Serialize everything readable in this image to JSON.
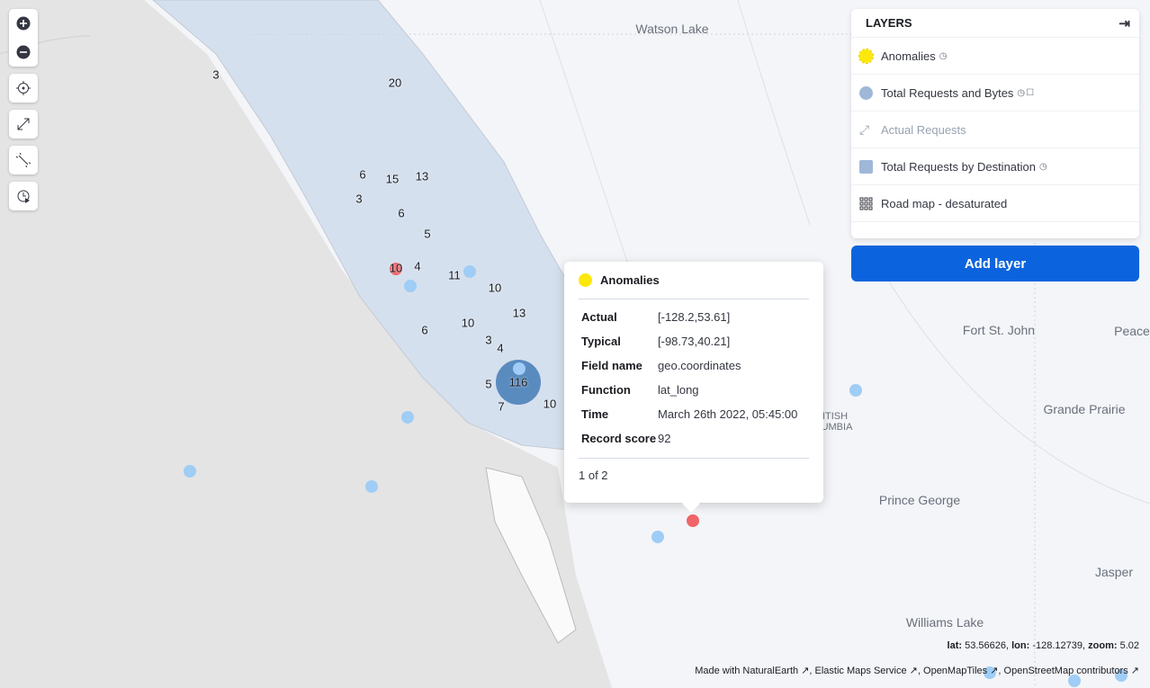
{
  "toolbar": {
    "buttons": [
      "zoom-in",
      "zoom-out",
      "set-view",
      "fit-to-data",
      "draw-tool",
      "timeslider"
    ]
  },
  "layers": {
    "title": "LAYERS",
    "items": [
      {
        "label": "Anomalies",
        "swatch": "#fce80c",
        "shape": "circle",
        "time_aware": true
      },
      {
        "label": "Total Requests and Bytes",
        "swatch": "#9fb8d8",
        "shape": "circle",
        "time_aware": true,
        "filtered": true
      },
      {
        "label": "Actual Requests",
        "swatch": "#98a2b3",
        "shape": "line",
        "disabled": true
      },
      {
        "label": "Total Requests by Destination",
        "swatch": "#9fb8d8",
        "shape": "square",
        "time_aware": true
      },
      {
        "label": "Road map - desaturated",
        "shape": "grid"
      }
    ],
    "add_label": "Add layer"
  },
  "popup": {
    "title": "Anomalies",
    "rows": [
      {
        "k": "Actual",
        "v": "[-128.2,53.61]"
      },
      {
        "k": "Typical",
        "v": "[-98.73,40.21]"
      },
      {
        "k": "Field name",
        "v": "geo.coordinates"
      },
      {
        "k": "Function",
        "v": "lat_long"
      },
      {
        "k": "Time",
        "v": "March 26th 2022, 05:45:00"
      },
      {
        "k": "Record score",
        "v": "92"
      }
    ],
    "pager": "1 of 2"
  },
  "clusters": [
    "3",
    "20",
    "6",
    "15",
    "13",
    "3",
    "6",
    "5",
    "10",
    "4",
    "11",
    "10",
    "13",
    "6",
    "10",
    "3",
    "4",
    "116",
    "5",
    "7",
    "10"
  ],
  "places": [
    "Watson Lake",
    "Fort St. John",
    "Peace",
    "Grande Prairie",
    "Prince George",
    "Jasper",
    "Williams Lake",
    "ITISH",
    "UMBIA"
  ],
  "status": {
    "lat_label": "lat:",
    "lat": "53.56626",
    "lon_label": "lon:",
    "lon": "-128.12739",
    "zoom_label": "zoom:",
    "zoom": "5.02"
  },
  "attribution": [
    "Made with NaturalEarth",
    "Elastic Maps Service",
    "OpenMapTiles",
    "OpenStreetMap contributors"
  ],
  "colors": {
    "anomaly_high": "#f0646a",
    "requests_dot": "#9fcdf5",
    "cluster": "#5a8bbf",
    "region_fill": "#d5e0ee",
    "accent": "#0b64dd"
  }
}
